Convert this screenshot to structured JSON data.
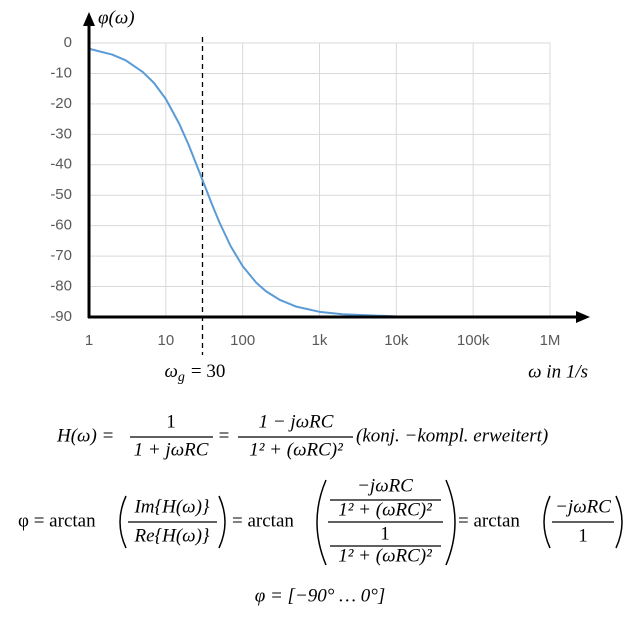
{
  "chart_data": {
    "type": "line",
    "x_scale": "log",
    "y_label": "φ(ω)",
    "x_label": "ω in 1/s",
    "x": [
      1,
      2,
      3,
      5,
      7,
      10,
      15,
      20,
      30,
      40,
      50,
      70,
      100,
      150,
      200,
      300,
      500,
      1000,
      2000,
      10000
    ],
    "series": [
      {
        "color": "#5b9bd5",
        "values": [
          -1.9,
          -3.8,
          -5.7,
          -9.5,
          -13.1,
          -18.4,
          -26.6,
          -33.7,
          -45,
          -53.1,
          -59,
          -66.8,
          -73.3,
          -78.7,
          -81.5,
          -84.3,
          -86.6,
          -88.3,
          -89.1,
          -89.8
        ]
      }
    ],
    "xlim": [
      1,
      1000000
    ],
    "xticks": [
      1,
      10,
      100,
      {
        "value": 1000,
        "label": "1k"
      },
      {
        "value": 10000,
        "label": "10k"
      },
      {
        "value": 100000,
        "label": "100k"
      },
      {
        "value": 1000000,
        "label": "1M"
      }
    ],
    "ylim": [
      -90,
      0
    ],
    "yticks": [
      0,
      -10,
      -20,
      -30,
      -40,
      -50,
      -60,
      -70,
      -80,
      -90
    ],
    "grid": true,
    "annotations": [
      {
        "x": 30,
        "label": [
          "ω",
          "g",
          "= 30"
        ]
      }
    ]
  },
  "equations": {
    "eq1": {
      "lhs": "H(ω) =",
      "f1_num": "1",
      "f1_den": "1 + jωRC",
      "eq": "=",
      "f2_num": "1 − jωRC",
      "f2_den": "1² + (ωRC)²",
      "note": "(konj. −kompl. erweitert)"
    },
    "eq2": {
      "lhs": "φ = arctan",
      "f1_num": "Im{H(ω)}",
      "f1_den": "Re{H(ω)}",
      "mid": "= arctan",
      "top_num": "−jωRC",
      "top_den": "1² + (ωRC)²",
      "bot_num": "1",
      "bot_den": "1² + (ωRC)²",
      "rhs": "= arctan",
      "f3_num": "−jωRC",
      "f3_den": "1"
    },
    "eq3": "φ = [−90° … 0°]"
  }
}
